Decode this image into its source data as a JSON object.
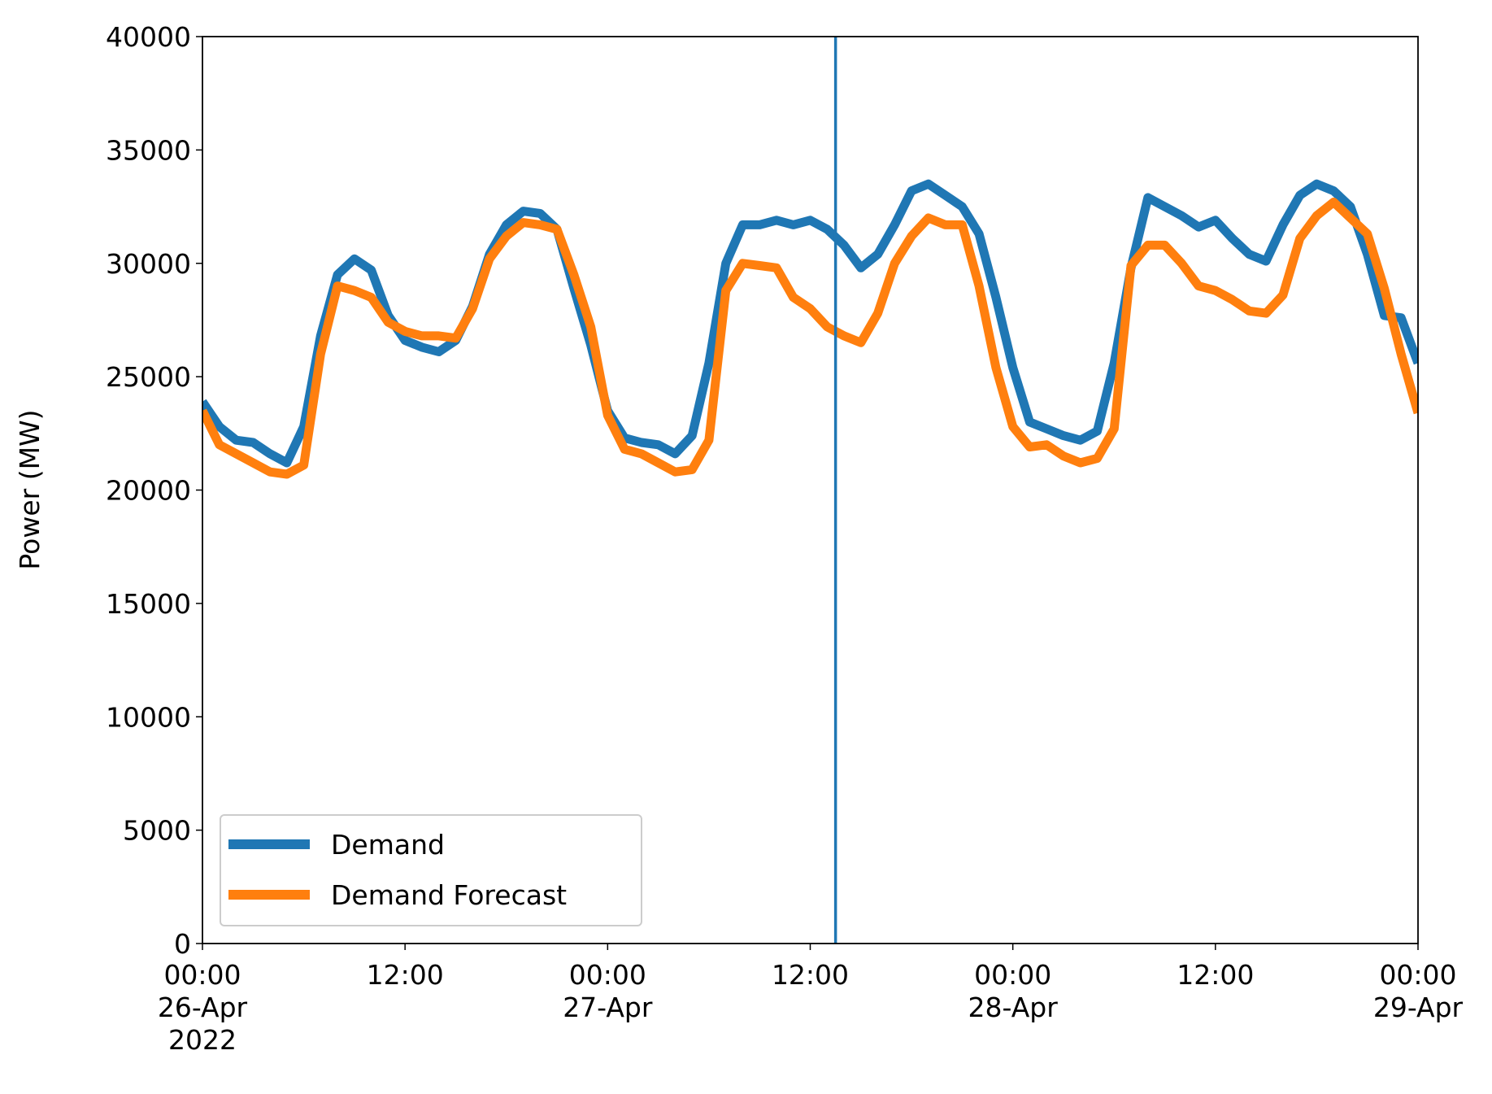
{
  "chart_data": {
    "type": "line",
    "ylabel": "Power (MW)",
    "x": [
      "2022-04-26T00:00",
      "2022-04-26T01:00",
      "2022-04-26T02:00",
      "2022-04-26T03:00",
      "2022-04-26T04:00",
      "2022-04-26T05:00",
      "2022-04-26T06:00",
      "2022-04-26T07:00",
      "2022-04-26T08:00",
      "2022-04-26T09:00",
      "2022-04-26T10:00",
      "2022-04-26T11:00",
      "2022-04-26T12:00",
      "2022-04-26T13:00",
      "2022-04-26T14:00",
      "2022-04-26T15:00",
      "2022-04-26T16:00",
      "2022-04-26T17:00",
      "2022-04-26T18:00",
      "2022-04-26T19:00",
      "2022-04-26T20:00",
      "2022-04-26T21:00",
      "2022-04-26T22:00",
      "2022-04-26T23:00",
      "2022-04-27T00:00",
      "2022-04-27T01:00",
      "2022-04-27T02:00",
      "2022-04-27T03:00",
      "2022-04-27T04:00",
      "2022-04-27T05:00",
      "2022-04-27T06:00",
      "2022-04-27T07:00",
      "2022-04-27T08:00",
      "2022-04-27T09:00",
      "2022-04-27T10:00",
      "2022-04-27T11:00",
      "2022-04-27T12:00",
      "2022-04-27T13:00",
      "2022-04-27T14:00",
      "2022-04-27T15:00",
      "2022-04-27T16:00",
      "2022-04-27T17:00",
      "2022-04-27T18:00",
      "2022-04-27T19:00",
      "2022-04-27T20:00",
      "2022-04-27T21:00",
      "2022-04-27T22:00",
      "2022-04-27T23:00",
      "2022-04-28T00:00",
      "2022-04-28T01:00",
      "2022-04-28T02:00",
      "2022-04-28T03:00",
      "2022-04-28T04:00",
      "2022-04-28T05:00",
      "2022-04-28T06:00",
      "2022-04-28T07:00",
      "2022-04-28T08:00",
      "2022-04-28T09:00",
      "2022-04-28T10:00",
      "2022-04-28T11:00",
      "2022-04-28T12:00",
      "2022-04-28T13:00",
      "2022-04-28T14:00",
      "2022-04-28T15:00",
      "2022-04-28T16:00",
      "2022-04-28T17:00",
      "2022-04-28T18:00",
      "2022-04-28T19:00",
      "2022-04-28T20:00",
      "2022-04-28T21:00",
      "2022-04-28T22:00",
      "2022-04-28T23:00",
      "2022-04-29T00:00"
    ],
    "series": [
      {
        "name": "Demand",
        "color": "#1f77b4",
        "values": [
          23900,
          22800,
          22200,
          22100,
          21600,
          21200,
          22800,
          26800,
          29500,
          30200,
          29700,
          27700,
          26600,
          26300,
          26100,
          26600,
          28100,
          30400,
          31700,
          32300,
          32200,
          31500,
          28900,
          26400,
          23500,
          22300,
          22100,
          22000,
          21600,
          22400,
          25600,
          30000,
          31700,
          31700,
          31900,
          31700,
          31900,
          31500,
          30800,
          29800,
          30400,
          31700,
          33200,
          33500,
          33000,
          32500,
          31300,
          28500,
          25400,
          23000,
          22700,
          22400,
          22200,
          22600,
          25600,
          29800,
          32900,
          32500,
          32100,
          31600,
          31900,
          31100,
          30400,
          30100,
          31700,
          33000,
          33500,
          33200,
          32500,
          30400,
          27700,
          27600,
          25600
        ]
      },
      {
        "name": "Demand Forecast",
        "color": "#ff7f0e",
        "values": [
          23500,
          22000,
          21600,
          21200,
          20800,
          20700,
          21100,
          26000,
          29000,
          28800,
          28500,
          27400,
          27000,
          26800,
          26800,
          26700,
          28000,
          30200,
          31200,
          31800,
          31700,
          31500,
          29500,
          27200,
          23300,
          21800,
          21600,
          21200,
          20800,
          20900,
          22200,
          28800,
          30000,
          29900,
          29800,
          28500,
          28000,
          27200,
          26800,
          26500,
          27800,
          30000,
          31200,
          32000,
          31700,
          31700,
          29000,
          25400,
          22800,
          21900,
          22000,
          21500,
          21200,
          21400,
          22700,
          29900,
          30800,
          30800,
          30000,
          29000,
          28800,
          28400,
          27900,
          27800,
          28600,
          31100,
          32100,
          32700,
          32000,
          31300,
          28900,
          26000,
          23400
        ]
      }
    ],
    "vline": {
      "x": "2022-04-27T13:30",
      "color": "#1f77b4"
    },
    "xlim": [
      "2022-04-26T00:00",
      "2022-04-29T00:00"
    ],
    "xticks": [
      {
        "value": "2022-04-26T00:00",
        "label": [
          "00:00",
          "26-Apr",
          "2022"
        ]
      },
      {
        "value": "2022-04-26T12:00",
        "label": [
          "12:00"
        ]
      },
      {
        "value": "2022-04-27T00:00",
        "label": [
          "00:00",
          "27-Apr"
        ]
      },
      {
        "value": "2022-04-27T12:00",
        "label": [
          "12:00"
        ]
      },
      {
        "value": "2022-04-28T00:00",
        "label": [
          "00:00",
          "28-Apr"
        ]
      },
      {
        "value": "2022-04-28T12:00",
        "label": [
          "12:00"
        ]
      },
      {
        "value": "2022-04-29T00:00",
        "label": [
          "00:00",
          "29-Apr"
        ]
      }
    ],
    "ylim": [
      0,
      40000
    ],
    "yticks": [
      0,
      5000,
      10000,
      15000,
      20000,
      25000,
      30000,
      35000,
      40000
    ],
    "legend": "lower left"
  }
}
